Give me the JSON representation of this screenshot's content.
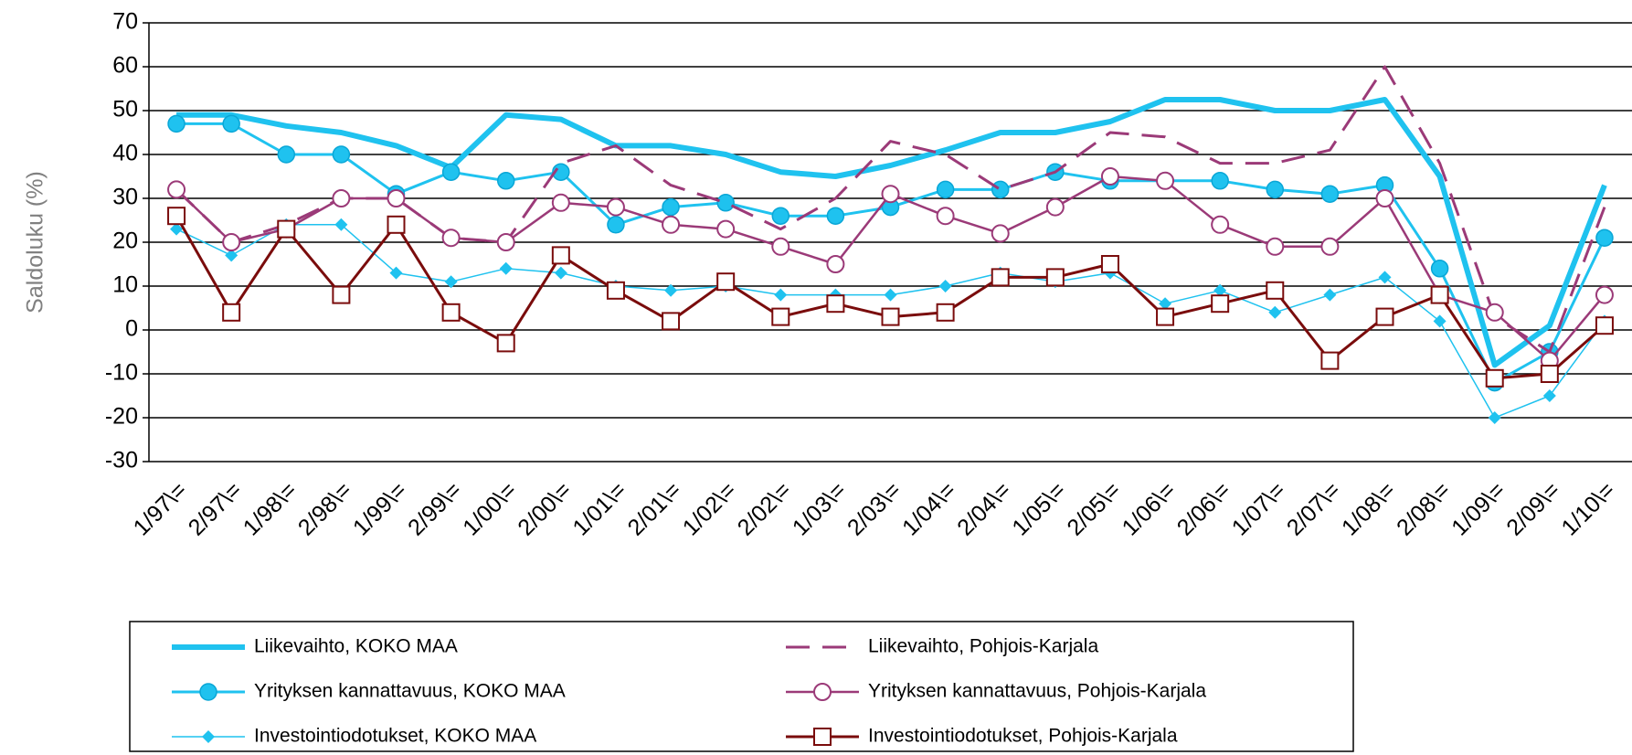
{
  "chart_data": {
    "type": "line",
    "y_label": "Saldoluku (%)",
    "categories": [
      "1/97\\=",
      "2/97\\=",
      "1/98\\=",
      "2/98\\=",
      "1/99\\=",
      "2/99\\=",
      "1/00\\=",
      "2/00\\=",
      "1/01\\=",
      "2/01\\=",
      "1/02\\=",
      "2/02\\=",
      "1/03\\=",
      "2/03\\=",
      "1/04\\=",
      "2/04\\=",
      "1/05\\=",
      "2/05\\=",
      "1/06\\=",
      "2/06\\=",
      "1/07\\=",
      "2/07\\=",
      "1/08\\=",
      "2/08\\=",
      "1/09\\=",
      "2/09\\=",
      "1/10\\="
    ],
    "ylim": [
      -30,
      70
    ],
    "yticks": [
      -30,
      -20,
      -10,
      0,
      10,
      20,
      30,
      40,
      50,
      60,
      70
    ],
    "grid": true,
    "legend": "bottom",
    "series": [
      {
        "name": "Liikevaihto, KOKO MAA",
        "color": "#1fc2ef",
        "width": 6,
        "dash": "none",
        "marker": "none",
        "values": [
          49,
          49,
          46.5,
          45,
          42,
          37,
          49,
          48,
          42,
          42,
          40,
          36,
          35,
          37.5,
          41,
          45,
          45,
          47.5,
          52.5,
          52.5,
          50,
          50,
          52.5,
          35,
          -8,
          1,
          33
        ]
      },
      {
        "name": "Yrityksen kannattavuus, KOKO MAA",
        "color": "#1fc2ef",
        "width": 3,
        "dash": "none",
        "marker": "circle-filled",
        "values": [
          47,
          47,
          40,
          40,
          31,
          36,
          34,
          36,
          24,
          28,
          29,
          26,
          26,
          28,
          32,
          32,
          36,
          34,
          34,
          34,
          32,
          31,
          33,
          14,
          -12,
          -5,
          21
        ]
      },
      {
        "name": "Investointiodotukset, KOKO MAA",
        "color": "#1fc2ef",
        "width": 1.5,
        "dash": "none",
        "marker": "diamond",
        "values": [
          23,
          17,
          24,
          24,
          13,
          11,
          14,
          13,
          10,
          9,
          10,
          8,
          8,
          8,
          10,
          13,
          11,
          13,
          6,
          9,
          4,
          8,
          12,
          2,
          -20,
          -15,
          2
        ]
      },
      {
        "name": "Liikevaihto, Pohjois-Karjala",
        "color": "#9b3a78",
        "width": 3,
        "dash": "26,14",
        "marker": "none",
        "values": [
          32,
          20,
          24,
          30,
          30,
          21,
          20,
          38,
          42,
          33,
          29,
          23,
          30,
          43,
          40,
          32,
          36,
          45,
          44,
          38,
          38,
          41,
          60,
          38,
          3,
          -5,
          28
        ]
      },
      {
        "name": "Yrityksen kannattavuus, Pohjois-Karjala",
        "color": "#9b3a78",
        "width": 2.5,
        "dash": "none",
        "marker": "circle-open",
        "values": [
          32,
          20,
          23,
          30,
          30,
          21,
          20,
          29,
          28,
          24,
          23,
          19,
          15,
          31,
          26,
          22,
          28,
          35,
          34,
          24,
          19,
          19,
          30,
          8,
          4,
          -7,
          8
        ]
      },
      {
        "name": "Investointiodotukset, Pohjois-Karjala",
        "color": "#7a0c0c",
        "width": 3,
        "dash": "none",
        "marker": "square-open",
        "values": [
          26,
          4,
          23,
          8,
          24,
          4,
          -3,
          17,
          9,
          2,
          11,
          3,
          6,
          3,
          4,
          12,
          12,
          15,
          3,
          6,
          9,
          -7,
          3,
          8,
          -11,
          -10,
          1
        ]
      }
    ]
  }
}
